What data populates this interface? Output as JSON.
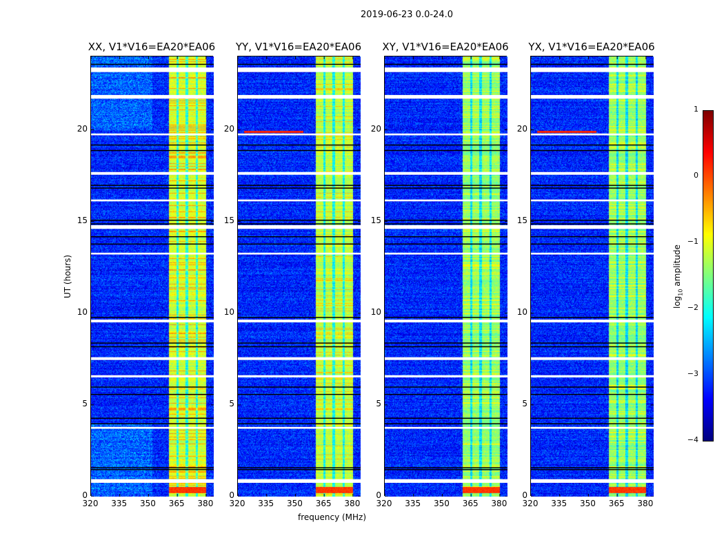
{
  "title": "2019-06-23 0.0-24.0",
  "chart_data": {
    "type": "heatmap",
    "suptitle": "2019-06-23 0.0-24.0",
    "panels": [
      {
        "title": "XX, V1*V16=EA20*EA06",
        "band_level": -1.1,
        "hot_level": -0.4
      },
      {
        "title": "YY, V1*V16=EA20*EA06",
        "band_level": -1.2,
        "hot_level": -0.6
      },
      {
        "title": "XY, V1*V16=EA20*EA06",
        "band_level": -1.4,
        "hot_level": -0.9
      },
      {
        "title": "YX, V1*V16=EA20*EA06",
        "band_level": -1.4,
        "hot_level": -0.9
      }
    ],
    "xlabel": "frequency (MHz)",
    "ylabel": "UT (hours)",
    "xlim": [
      320,
      384
    ],
    "ylim": [
      0,
      24
    ],
    "xticks": [
      "320",
      "335",
      "350",
      "365",
      "380"
    ],
    "xtick_values": [
      320,
      335,
      350,
      365,
      380
    ],
    "yticks": [
      "0",
      "5",
      "10",
      "15",
      "20"
    ],
    "ytick_values": [
      0,
      5,
      10,
      15,
      20
    ],
    "colorbar": {
      "label": "log10 amplitude",
      "label_main": "log",
      "label_sub": "10",
      "label_rest": " amplitude",
      "range": [
        -4,
        1
      ],
      "ticks": [
        "1",
        "0",
        "−1",
        "−2",
        "−3",
        "−4"
      ],
      "tick_values": [
        1,
        0,
        -1,
        -2,
        -3,
        -4
      ],
      "colormap": "jet"
    },
    "background_level": -3.2,
    "rfi_band_mhz": [
      360.5,
      380
    ],
    "rfi_band_gaps_mhz": [
      365,
      369.8,
      375
    ],
    "strong_rfi_hours": [
      0.2,
      0.55
    ],
    "flagged_hours": [
      [
        23.15,
        23.4
      ],
      [
        21.7,
        21.9
      ],
      [
        19.7,
        19.8
      ],
      [
        17.55,
        17.7
      ],
      [
        16.1,
        16.2
      ],
      [
        14.6,
        14.8
      ],
      [
        13.2,
        13.3
      ],
      [
        9.5,
        9.65
      ],
      [
        7.45,
        7.6
      ],
      [
        6.5,
        6.62
      ],
      [
        3.7,
        3.8
      ],
      [
        0.75,
        0.95
      ]
    ],
    "black_rows_hours": [
      23.6,
      19.2,
      18.9,
      17.0,
      16.85,
      15.1,
      14.9,
      14.2,
      13.8,
      9.8,
      8.4,
      8.2,
      6.0,
      5.6,
      4.3,
      4.0,
      1.6,
      1.5
    ]
  }
}
